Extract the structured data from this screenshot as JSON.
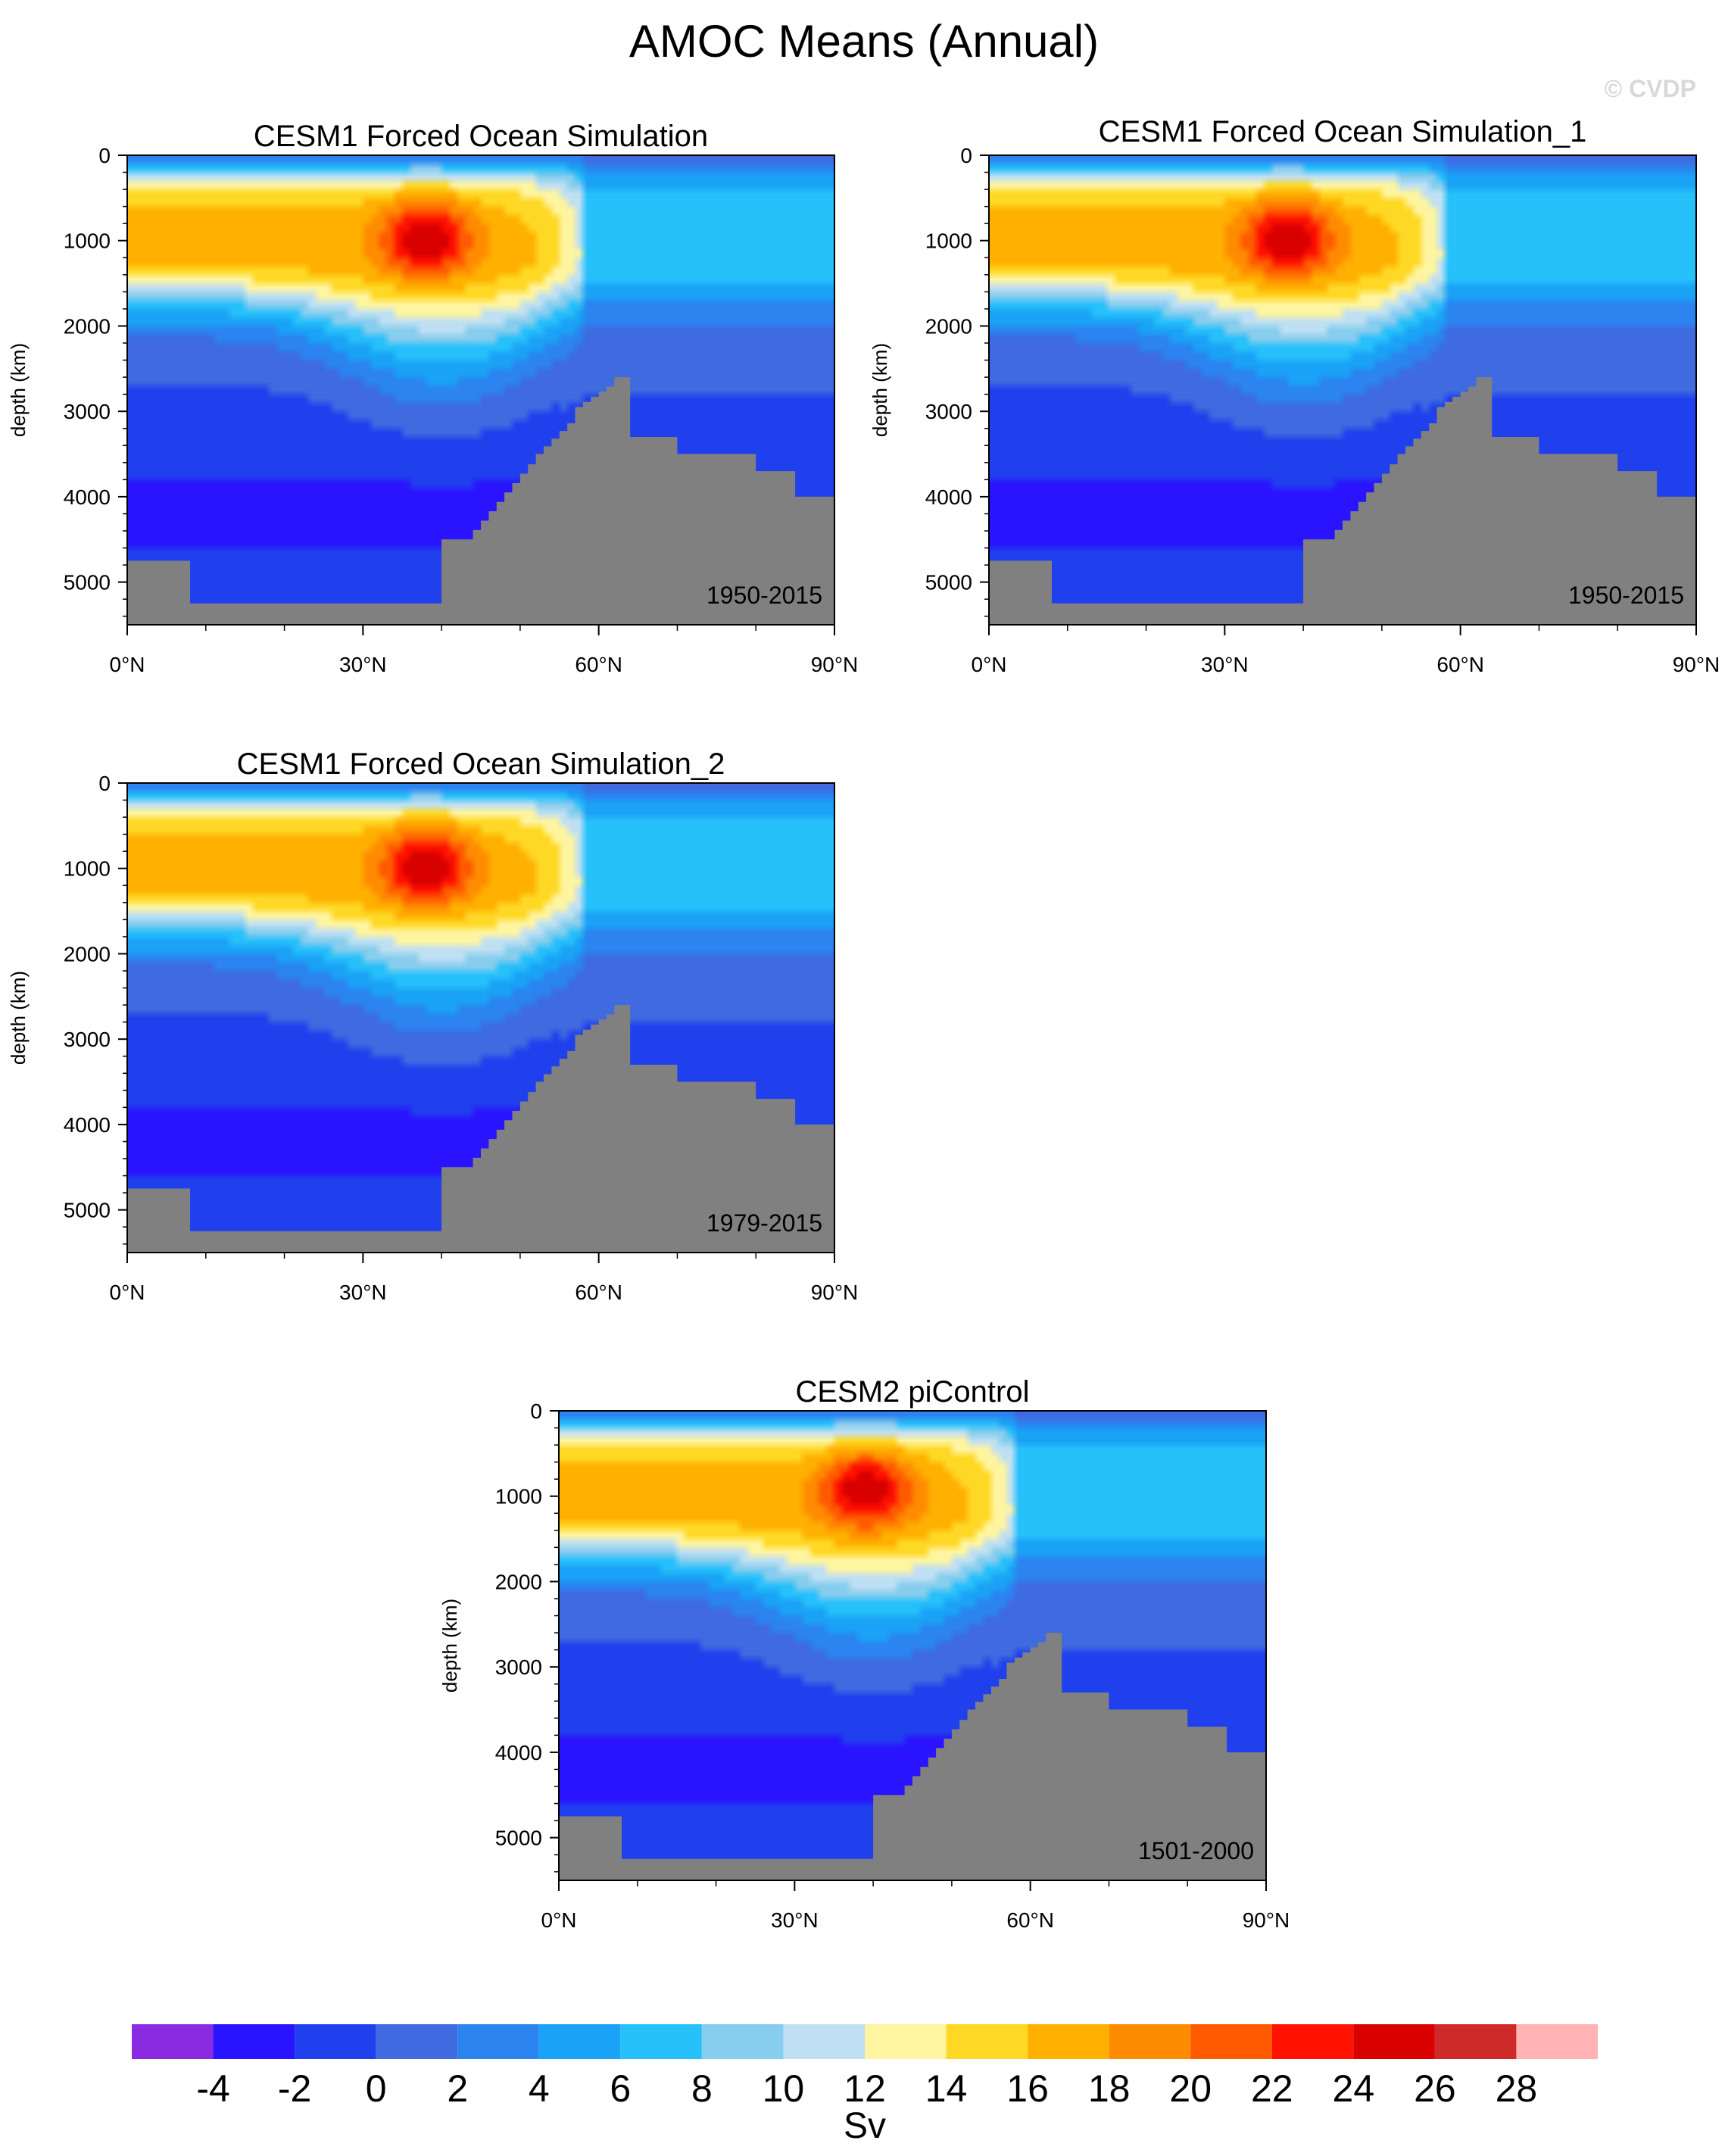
{
  "figure": {
    "title": "AMOC Means (Annual)",
    "watermark": "© CVDP"
  },
  "colors": {
    "levels": [
      "#8a2be2",
      "#2a14ff",
      "#2040ee",
      "#3f6ae0",
      "#2b84f0",
      "#1aa3f6",
      "#26c0fb",
      "#86cdee",
      "#bfe0f3",
      "#fff5a0",
      "#ffd826",
      "#ffb000",
      "#ff8c00",
      "#ff5a00",
      "#ff1200",
      "#d90000",
      "#cf2a2a",
      "#ffb3b3"
    ],
    "land": "#808080"
  },
  "colorbar": {
    "tick_labels": [
      "-4",
      "-2",
      "0",
      "2",
      "4",
      "6",
      "8",
      "10",
      "12",
      "14",
      "16",
      "18",
      "20",
      "22",
      "24",
      "26",
      "28"
    ],
    "units": "Sv"
  },
  "chart_data": [
    {
      "type": "heatmap",
      "title": "CESM1 Forced Ocean Simulation",
      "period": "1950-2015",
      "ylabel": "depth (km)",
      "yticks": [
        "0",
        "1000",
        "2000",
        "3000",
        "4000",
        "5000"
      ],
      "xticks": [
        "0°N",
        "30°N",
        "60°N",
        "90°N"
      ],
      "xlim": [
        0,
        90
      ],
      "ylim": [
        0,
        5500
      ],
      "core": {
        "lat": 38,
        "depth": 950,
        "max": 24
      }
    },
    {
      "type": "heatmap",
      "title": "CESM1 Forced Ocean Simulation_1",
      "period": "1950-2015",
      "ylabel": "depth (km)",
      "yticks": [
        "0",
        "1000",
        "2000",
        "3000",
        "4000",
        "5000"
      ],
      "xticks": [
        "0°N",
        "30°N",
        "60°N",
        "90°N"
      ],
      "xlim": [
        0,
        90
      ],
      "ylim": [
        0,
        5500
      ],
      "core": {
        "lat": 38,
        "depth": 950,
        "max": 24
      }
    },
    {
      "type": "heatmap",
      "title": "CESM1 Forced Ocean Simulation_2",
      "period": "1979-2015",
      "ylabel": "depth (km)",
      "yticks": [
        "0",
        "1000",
        "2000",
        "3000",
        "4000",
        "5000"
      ],
      "xticks": [
        "0°N",
        "30°N",
        "60°N",
        "90°N"
      ],
      "xlim": [
        0,
        90
      ],
      "ylim": [
        0,
        5500
      ],
      "core": {
        "lat": 38,
        "depth": 950,
        "max": 24
      }
    },
    {
      "type": "heatmap",
      "title": "CESM2 piControl",
      "period": "1501-2000",
      "ylabel": "depth (km)",
      "yticks": [
        "0",
        "1000",
        "2000",
        "3000",
        "4000",
        "5000"
      ],
      "xticks": [
        "0°N",
        "30°N",
        "60°N",
        "90°N"
      ],
      "xlim": [
        0,
        90
      ],
      "ylim": [
        0,
        5500
      ],
      "core": {
        "lat": 39,
        "depth": 900,
        "max": 24
      }
    }
  ]
}
